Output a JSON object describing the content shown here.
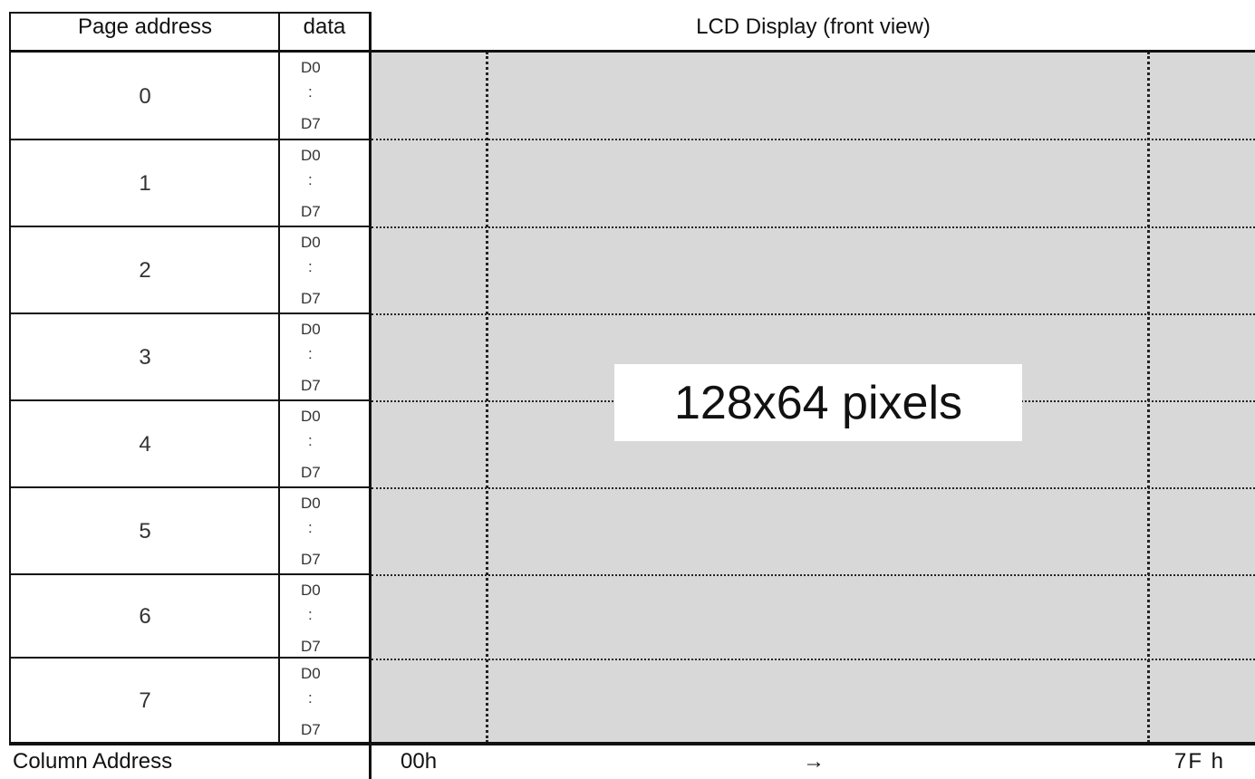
{
  "header": {
    "page_address": "Page address",
    "data": "data",
    "lcd_display": "LCD Display (front view)"
  },
  "pages": [
    {
      "label": "0",
      "bit_start": "D0",
      "sep": ":",
      "bit_end": "D7"
    },
    {
      "label": "1",
      "bit_start": "D0",
      "sep": ":",
      "bit_end": "D7"
    },
    {
      "label": "2",
      "bit_start": "D0",
      "sep": ":",
      "bit_end": "D7"
    },
    {
      "label": "3",
      "bit_start": "D0",
      "sep": ":",
      "bit_end": "D7"
    },
    {
      "label": "4",
      "bit_start": "D0",
      "sep": ":",
      "bit_end": "D7"
    },
    {
      "label": "5",
      "bit_start": "D0",
      "sep": ":",
      "bit_end": "D7"
    },
    {
      "label": "6",
      "bit_start": "D0",
      "sep": ":",
      "bit_end": "D7"
    },
    {
      "label": "7",
      "bit_start": "D0",
      "sep": ":",
      "bit_end": "D7"
    }
  ],
  "display": {
    "resolution_label": "128x64 pixels",
    "background_color": "#d8d8d8"
  },
  "footer": {
    "column_address": "Column Address",
    "start": "00h",
    "arrow": "→",
    "end": "7F h"
  }
}
